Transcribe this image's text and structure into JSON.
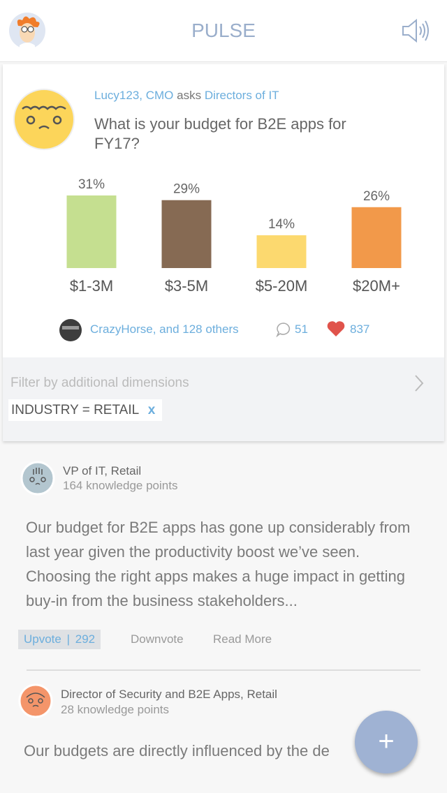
{
  "header": {
    "title": "PULSE"
  },
  "question": {
    "asker": "Lucy123, CMO",
    "verb": "asks",
    "audience": "Directors of IT",
    "text": "What is your budget for B2E apps for FY17?"
  },
  "chart_data": {
    "type": "bar",
    "categories": [
      "$1-3M",
      "$3-5M",
      "$5-20M",
      "$20M+"
    ],
    "values": [
      31,
      29,
      14,
      26
    ],
    "value_labels": [
      "31%",
      "29%",
      "14%",
      "26%"
    ],
    "colors": [
      "#c5df90",
      "#866a53",
      "#fcd96f",
      "#f2994a"
    ]
  },
  "stats": {
    "participants": "CrazyHorse, and 128 others",
    "comments": 51,
    "likes": 837
  },
  "filter": {
    "prompt": "Filter by additional dimensions",
    "chip": "INDUSTRY = RETAIL",
    "chip_remove": "x"
  },
  "answers": [
    {
      "role": "VP of IT, Retail",
      "points": "164 knowledge points",
      "text": "Our budget for B2E apps has gone up considerably from last year given the productivity boost we’ve seen. Choosing the right apps makes a huge impact in getting buy-in from the business stakeholders...",
      "upvote": "Upvote",
      "separator": "|",
      "upvotes": 292,
      "downvote": "Downvote",
      "read_more": "Read More"
    },
    {
      "role": "Director of Security and B2E Apps, Retail",
      "points": "28 knowledge points",
      "text": "Our budgets are directly influenced by the de"
    }
  ],
  "fab": "+"
}
